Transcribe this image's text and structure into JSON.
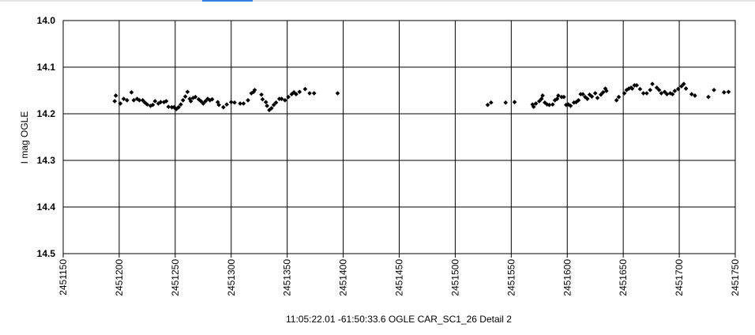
{
  "chart_data": {
    "type": "scatter",
    "x_label": "11:05:22.01 -61:50:33.6     OGLE CAR_SC1_26     Detail 2",
    "y_label": "I mag OGLE",
    "color": "#000000",
    "grid": true,
    "y_reversed": true,
    "xlim": [
      2451150,
      2451750
    ],
    "xticks": [
      2451150,
      2451200,
      2451250,
      2451300,
      2451350,
      2451400,
      2451450,
      2451500,
      2451550,
      2451600,
      2451650,
      2451700,
      2451750
    ],
    "ylim": [
      14.0,
      14.5
    ],
    "yticks": [
      {
        "value": 14.0,
        "label": "14.0"
      },
      14.1,
      14.2,
      14.3,
      14.4,
      14.5
    ],
    "x": [
      2451196,
      2451197,
      2451201,
      2451204,
      2451207,
      2451211,
      2451213,
      2451216,
      2451218,
      2451221,
      2451223,
      2451225,
      2451228,
      2451230,
      2451232,
      2451235,
      2451237,
      2451240,
      2451242,
      2451244,
      2451247,
      2451249,
      2451251,
      2451253,
      2451255,
      2451257,
      2451259,
      2451261,
      2451263,
      2451264,
      2451266,
      2451268,
      2451271,
      2451273,
      2451275,
      2451277,
      2451279,
      2451281,
      2451283,
      2451288,
      2451289,
      2451293,
      2451296,
      2451300,
      2451303,
      2451308,
      2451311,
      2451315,
      2451318,
      2451320,
      2451321,
      2451327,
      2451328,
      2451331,
      2451332,
      2451334,
      2451336,
      2451338,
      2451340,
      2451343,
      2451345,
      2451348,
      2451351,
      2451354,
      2451356,
      2451358,
      2451361,
      2451366,
      2451370,
      2451374,
      2451395,
      2451529,
      2451532,
      2451545,
      2451553,
      2451569,
      2451570,
      2451572,
      2451575,
      2451577,
      2451578,
      2451580,
      2451582,
      2451584,
      2451587,
      2451589,
      2451591,
      2451592,
      2451595,
      2451597,
      2451599,
      2451601,
      2451603,
      2451606,
      2451608,
      2451610,
      2451612,
      2451614,
      2451616,
      2451618,
      2451620,
      2451622,
      2451625,
      2451627,
      2451630,
      2451632,
      2451634,
      2451635,
      2451644,
      2451646,
      2451651,
      2451653,
      2451655,
      2451657,
      2451658,
      2451660,
      2451662,
      2451665,
      2451668,
      2451671,
      2451674,
      2451676,
      2451680,
      2451682,
      2451684,
      2451687,
      2451689,
      2451692,
      2451694,
      2451696,
      2451699,
      2451702,
      2451704,
      2451706,
      2451711,
      2451714,
      2451726,
      2451731,
      2451740,
      2451744
    ],
    "values": [
      14.173,
      14.161,
      14.178,
      14.168,
      14.171,
      14.154,
      14.171,
      14.168,
      14.171,
      14.171,
      14.176,
      14.18,
      14.183,
      14.181,
      14.173,
      14.178,
      14.175,
      14.175,
      14.173,
      14.185,
      14.186,
      14.186,
      14.19,
      14.186,
      14.18,
      14.171,
      14.163,
      14.153,
      14.168,
      14.173,
      14.166,
      14.164,
      14.169,
      14.173,
      14.178,
      14.173,
      14.168,
      14.171,
      14.169,
      14.175,
      14.181,
      14.186,
      14.18,
      14.175,
      14.176,
      14.178,
      14.178,
      14.171,
      14.156,
      14.153,
      14.149,
      14.159,
      14.169,
      14.175,
      14.183,
      14.192,
      14.188,
      14.181,
      14.176,
      14.168,
      14.168,
      14.171,
      14.164,
      14.158,
      14.154,
      14.158,
      14.153,
      14.147,
      14.156,
      14.156,
      14.156,
      14.181,
      14.176,
      14.176,
      14.175,
      14.18,
      14.185,
      14.178,
      14.173,
      14.168,
      14.161,
      14.176,
      14.18,
      14.181,
      14.18,
      14.171,
      14.168,
      14.161,
      14.164,
      14.164,
      14.181,
      14.18,
      14.183,
      14.176,
      14.175,
      14.171,
      14.158,
      14.158,
      14.164,
      14.168,
      14.159,
      14.163,
      14.156,
      14.166,
      14.159,
      14.154,
      14.146,
      14.151,
      14.171,
      14.164,
      14.156,
      14.149,
      14.146,
      14.144,
      14.146,
      14.139,
      14.139,
      14.147,
      14.156,
      14.156,
      14.149,
      14.136,
      14.144,
      14.149,
      14.156,
      14.153,
      14.158,
      14.156,
      14.158,
      14.151,
      14.147,
      14.141,
      14.136,
      14.146,
      14.158,
      14.161,
      14.164,
      14.149,
      14.154,
      14.153
    ]
  }
}
